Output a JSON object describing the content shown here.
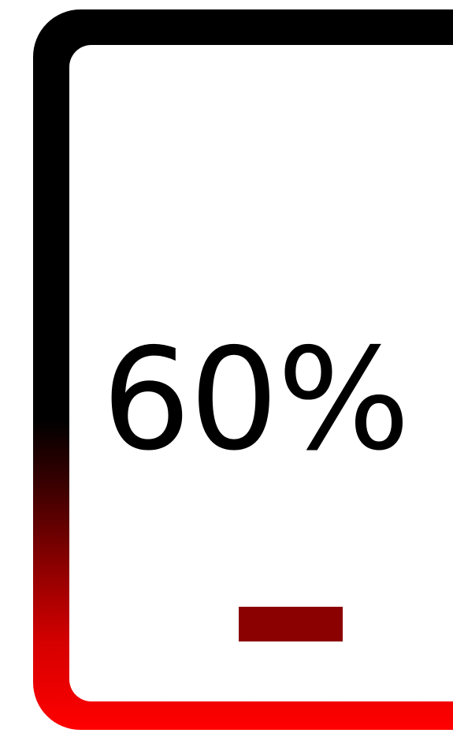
{
  "battery": {
    "percent_label": "60%",
    "level": 0.6
  },
  "colors": {
    "frame_top": "#000000",
    "frame_bottom": "#ff0000",
    "indicator": "#8b0000",
    "screen": "#ffffff",
    "text": "#000000"
  },
  "icons": {
    "device": "phone-icon"
  }
}
